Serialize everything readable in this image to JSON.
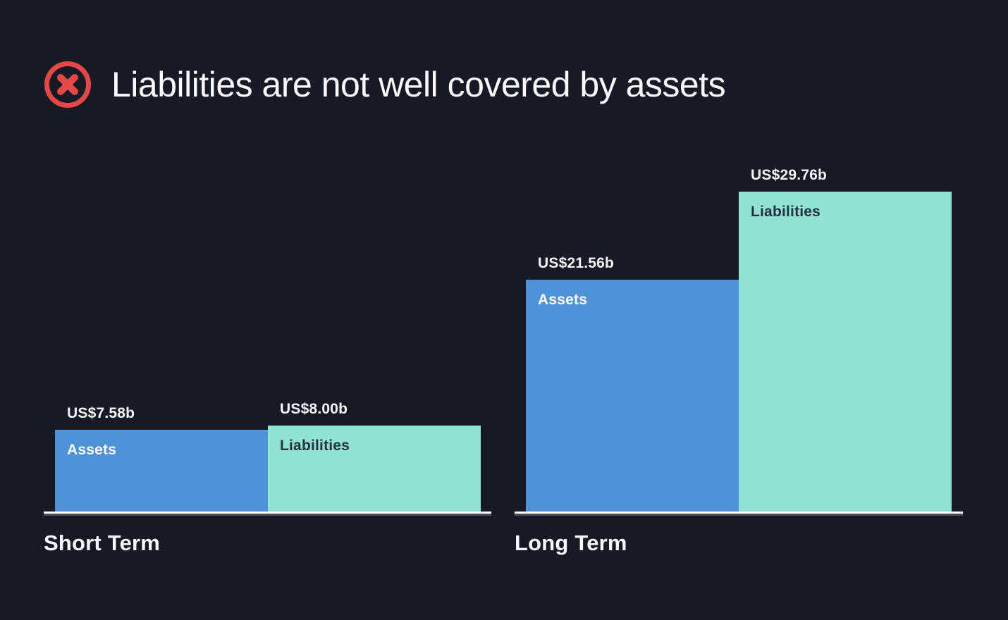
{
  "header": {
    "title": "Liabilities are not well covered by assets",
    "status_icon": "error-x-circle",
    "status_color": "#e34746"
  },
  "colors": {
    "background": "#151a25",
    "assets_bar": "#4e92d8",
    "liabilities_bar": "#90e3d3",
    "baseline": "#fcfcfd",
    "baseline_shadow": "#4a4f59",
    "title_text": "#fafbfc",
    "value_label_text": "#f5f6f8",
    "label_on_assets_bar": "#ffffff",
    "label_on_liabilities_bar": "#273140"
  },
  "chart_data": {
    "type": "bar",
    "title": "Liabilities are not well covered by assets",
    "currency": "US$",
    "unit": "b",
    "grid": false,
    "legend_position": "none",
    "categories": [
      "Short Term",
      "Long Term"
    ],
    "series": [
      {
        "name": "Assets",
        "values": [
          7.58,
          21.56
        ]
      },
      {
        "name": "Liabilities",
        "values": [
          8.0,
          29.76
        ]
      }
    ],
    "groups": [
      {
        "label": "Short Term",
        "bars": [
          {
            "name": "Assets",
            "value": 7.58,
            "display": "US$7.58b",
            "color": "#4e92d8",
            "label_color": "#ffffff"
          },
          {
            "name": "Liabilities",
            "value": 8.0,
            "display": "US$8.00b",
            "color": "#90e3d3",
            "label_color": "#273140"
          }
        ]
      },
      {
        "label": "Long Term",
        "bars": [
          {
            "name": "Assets",
            "value": 21.56,
            "display": "US$21.56b",
            "color": "#4e92d8",
            "label_color": "#ffffff"
          },
          {
            "name": "Liabilities",
            "value": 29.76,
            "display": "US$29.76b",
            "color": "#90e3d3",
            "label_color": "#273140"
          }
        ]
      }
    ]
  }
}
